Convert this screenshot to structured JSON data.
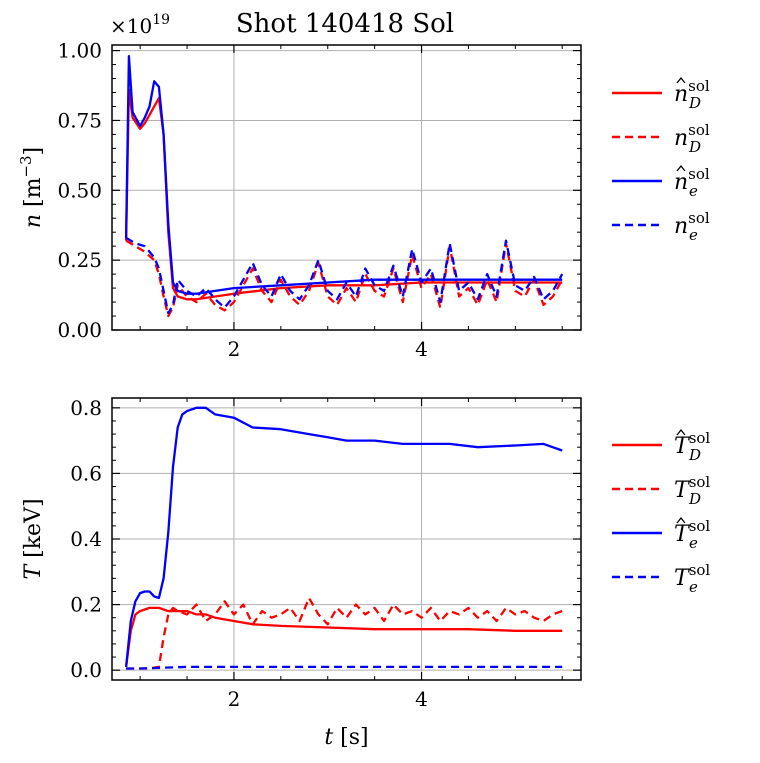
{
  "chart_data": [
    {
      "type": "line",
      "title": "Shot 140418 Sol",
      "scale_label": "×10",
      "scale_exponent": "19",
      "ylabel_var": "n",
      "ylabel_unit": "[m",
      "ylabel_unit_exp": "−3",
      "ylabel_unit_close": "]",
      "xlabel": "",
      "xlim": [
        0.7,
        5.7
      ],
      "ylim": [
        0.0,
        1.02
      ],
      "xticks": [
        2,
        4
      ],
      "xtick_labels": [
        "2",
        "4"
      ],
      "yticks": [
        0.0,
        0.25,
        0.5,
        0.75,
        1.0
      ],
      "ytick_labels": [
        "0.00",
        "0.25",
        "0.50",
        "0.75",
        "1.00"
      ],
      "grid": true,
      "legend_position": "outside-right",
      "series": [
        {
          "name": "n_D hat sol",
          "legend": {
            "base": "n",
            "hat": true,
            "sub": "D",
            "sup": "sol"
          },
          "color": "#ff0000",
          "dash": "solid",
          "x": [
            0.85,
            0.88,
            0.92,
            1.0,
            1.05,
            1.1,
            1.15,
            1.2,
            1.25,
            1.3,
            1.35,
            1.4,
            1.5,
            1.6,
            1.8,
            2.0,
            2.5,
            3.0,
            3.5,
            4.0,
            4.5,
            5.0,
            5.5
          ],
          "y": [
            0.32,
            0.86,
            0.76,
            0.72,
            0.74,
            0.77,
            0.8,
            0.83,
            0.7,
            0.35,
            0.15,
            0.12,
            0.11,
            0.11,
            0.12,
            0.13,
            0.15,
            0.16,
            0.16,
            0.17,
            0.17,
            0.17,
            0.17
          ]
        },
        {
          "name": "n_D sol",
          "legend": {
            "base": "n",
            "hat": false,
            "sub": "D",
            "sup": "sol"
          },
          "color": "#ff0000",
          "dash": "dashed",
          "x": [
            0.85,
            0.95,
            1.05,
            1.15,
            1.2,
            1.25,
            1.3,
            1.35,
            1.4,
            1.45,
            1.5,
            1.6,
            1.7,
            1.8,
            1.9,
            2.0,
            2.1,
            2.2,
            2.3,
            2.4,
            2.5,
            2.6,
            2.7,
            2.8,
            2.9,
            3.0,
            3.1,
            3.2,
            3.3,
            3.4,
            3.5,
            3.6,
            3.7,
            3.8,
            3.9,
            4.0,
            4.1,
            4.2,
            4.3,
            4.4,
            4.5,
            4.6,
            4.7,
            4.8,
            4.9,
            5.0,
            5.1,
            5.2,
            5.3,
            5.4,
            5.5
          ],
          "y": [
            0.32,
            0.3,
            0.28,
            0.25,
            0.2,
            0.12,
            0.05,
            0.08,
            0.16,
            0.14,
            0.12,
            0.1,
            0.13,
            0.09,
            0.07,
            0.1,
            0.16,
            0.22,
            0.14,
            0.1,
            0.18,
            0.12,
            0.09,
            0.14,
            0.24,
            0.12,
            0.09,
            0.15,
            0.1,
            0.2,
            0.14,
            0.12,
            0.22,
            0.1,
            0.27,
            0.15,
            0.2,
            0.08,
            0.3,
            0.12,
            0.15,
            0.09,
            0.18,
            0.1,
            0.31,
            0.14,
            0.12,
            0.18,
            0.09,
            0.12,
            0.18
          ]
        },
        {
          "name": "n_e hat sol",
          "legend": {
            "base": "n",
            "hat": true,
            "sub": "e",
            "sup": "sol"
          },
          "color": "#0000ff",
          "dash": "solid",
          "x": [
            0.85,
            0.88,
            0.92,
            1.0,
            1.05,
            1.1,
            1.15,
            1.2,
            1.25,
            1.3,
            1.35,
            1.4,
            1.5,
            1.6,
            1.8,
            2.0,
            2.5,
            3.0,
            3.5,
            4.0,
            4.5,
            5.0,
            5.5
          ],
          "y": [
            0.33,
            0.98,
            0.78,
            0.73,
            0.76,
            0.8,
            0.89,
            0.87,
            0.7,
            0.38,
            0.17,
            0.14,
            0.13,
            0.13,
            0.14,
            0.15,
            0.16,
            0.17,
            0.18,
            0.18,
            0.18,
            0.18,
            0.18
          ]
        },
        {
          "name": "n_e sol",
          "legend": {
            "base": "n",
            "hat": false,
            "sub": "e",
            "sup": "sol"
          },
          "color": "#0000ff",
          "dash": "dashed",
          "x": [
            0.85,
            0.95,
            1.05,
            1.15,
            1.2,
            1.25,
            1.3,
            1.35,
            1.4,
            1.45,
            1.5,
            1.6,
            1.7,
            1.8,
            1.9,
            2.0,
            2.1,
            2.2,
            2.3,
            2.4,
            2.5,
            2.6,
            2.7,
            2.8,
            2.9,
            3.0,
            3.1,
            3.2,
            3.3,
            3.4,
            3.5,
            3.6,
            3.7,
            3.8,
            3.9,
            4.0,
            4.1,
            4.2,
            4.3,
            4.4,
            4.5,
            4.6,
            4.7,
            4.8,
            4.9,
            5.0,
            5.1,
            5.2,
            5.3,
            5.4,
            5.5
          ],
          "y": [
            0.33,
            0.31,
            0.3,
            0.26,
            0.22,
            0.14,
            0.06,
            0.09,
            0.18,
            0.16,
            0.14,
            0.12,
            0.15,
            0.11,
            0.08,
            0.12,
            0.18,
            0.24,
            0.16,
            0.12,
            0.2,
            0.14,
            0.11,
            0.16,
            0.25,
            0.14,
            0.11,
            0.17,
            0.12,
            0.22,
            0.16,
            0.14,
            0.23,
            0.12,
            0.29,
            0.17,
            0.22,
            0.1,
            0.31,
            0.14,
            0.17,
            0.11,
            0.2,
            0.12,
            0.32,
            0.16,
            0.14,
            0.19,
            0.11,
            0.14,
            0.2
          ]
        }
      ]
    },
    {
      "type": "line",
      "title": "",
      "ylabel_var": "T",
      "ylabel_unit": "[keV]",
      "xlabel_var": "t",
      "xlabel_unit": "[s]",
      "xlim": [
        0.7,
        5.7
      ],
      "ylim": [
        -0.03,
        0.83
      ],
      "xticks": [
        2,
        4
      ],
      "xtick_labels": [
        "2",
        "4"
      ],
      "yticks": [
        0.0,
        0.2,
        0.4,
        0.6,
        0.8
      ],
      "ytick_labels": [
        "0.0",
        "0.2",
        "0.4",
        "0.6",
        "0.8"
      ],
      "grid": true,
      "legend_position": "outside-right",
      "series": [
        {
          "name": "T_D hat sol",
          "legend": {
            "base": "T",
            "hat": true,
            "sub": "D",
            "sup": "sol"
          },
          "color": "#ff0000",
          "dash": "solid",
          "x": [
            0.85,
            0.9,
            0.95,
            1.0,
            1.1,
            1.2,
            1.3,
            1.4,
            1.5,
            1.6,
            1.7,
            1.8,
            2.0,
            2.2,
            2.5,
            3.0,
            3.5,
            4.0,
            4.5,
            5.0,
            5.5
          ],
          "y": [
            0.01,
            0.12,
            0.17,
            0.18,
            0.19,
            0.19,
            0.18,
            0.18,
            0.18,
            0.17,
            0.17,
            0.16,
            0.15,
            0.14,
            0.135,
            0.13,
            0.125,
            0.125,
            0.125,
            0.12,
            0.12
          ]
        },
        {
          "name": "T_D sol",
          "legend": {
            "base": "T",
            "hat": false,
            "sub": "D",
            "sup": "sol"
          },
          "color": "#ff0000",
          "dash": "dashed",
          "x": [
            0.85,
            1.0,
            1.1,
            1.2,
            1.25,
            1.3,
            1.35,
            1.4,
            1.5,
            1.6,
            1.7,
            1.8,
            1.9,
            2.0,
            2.1,
            2.2,
            2.3,
            2.4,
            2.5,
            2.6,
            2.7,
            2.8,
            2.9,
            3.0,
            3.1,
            3.2,
            3.3,
            3.4,
            3.5,
            3.6,
            3.7,
            3.8,
            3.9,
            4.0,
            4.1,
            4.2,
            4.3,
            4.4,
            4.5,
            4.6,
            4.7,
            4.8,
            4.9,
            5.0,
            5.1,
            5.2,
            5.3,
            5.4,
            5.5
          ],
          "y": [
            0.005,
            0.005,
            0.005,
            0.01,
            0.1,
            0.17,
            0.19,
            0.18,
            0.17,
            0.2,
            0.15,
            0.17,
            0.21,
            0.17,
            0.2,
            0.14,
            0.18,
            0.16,
            0.17,
            0.19,
            0.15,
            0.22,
            0.17,
            0.14,
            0.19,
            0.16,
            0.2,
            0.17,
            0.19,
            0.15,
            0.2,
            0.17,
            0.18,
            0.16,
            0.19,
            0.15,
            0.18,
            0.17,
            0.19,
            0.16,
            0.18,
            0.15,
            0.19,
            0.17,
            0.18,
            0.16,
            0.15,
            0.17,
            0.18
          ]
        },
        {
          "name": "T_e hat sol",
          "legend": {
            "base": "T",
            "hat": true,
            "sub": "e",
            "sup": "sol"
          },
          "color": "#0000ff",
          "dash": "solid",
          "x": [
            0.85,
            0.9,
            0.95,
            1.0,
            1.05,
            1.1,
            1.15,
            1.2,
            1.25,
            1.3,
            1.35,
            1.4,
            1.45,
            1.5,
            1.6,
            1.7,
            1.8,
            2.0,
            2.2,
            2.5,
            2.8,
            3.0,
            3.2,
            3.5,
            3.8,
            4.0,
            4.3,
            4.6,
            5.0,
            5.3,
            5.5
          ],
          "y": [
            0.01,
            0.15,
            0.21,
            0.235,
            0.24,
            0.24,
            0.225,
            0.22,
            0.28,
            0.42,
            0.62,
            0.74,
            0.78,
            0.79,
            0.8,
            0.8,
            0.78,
            0.77,
            0.74,
            0.735,
            0.72,
            0.71,
            0.7,
            0.7,
            0.69,
            0.69,
            0.69,
            0.68,
            0.685,
            0.69,
            0.67
          ]
        },
        {
          "name": "T_e sol",
          "legend": {
            "base": "T",
            "hat": false,
            "sub": "e",
            "sup": "sol"
          },
          "color": "#0000ff",
          "dash": "dashed",
          "x": [
            0.85,
            1.0,
            1.5,
            2.0,
            2.5,
            3.0,
            3.5,
            4.0,
            4.5,
            5.0,
            5.5
          ],
          "y": [
            0.005,
            0.005,
            0.01,
            0.01,
            0.01,
            0.01,
            0.01,
            0.01,
            0.01,
            0.01,
            0.01
          ]
        }
      ]
    }
  ]
}
